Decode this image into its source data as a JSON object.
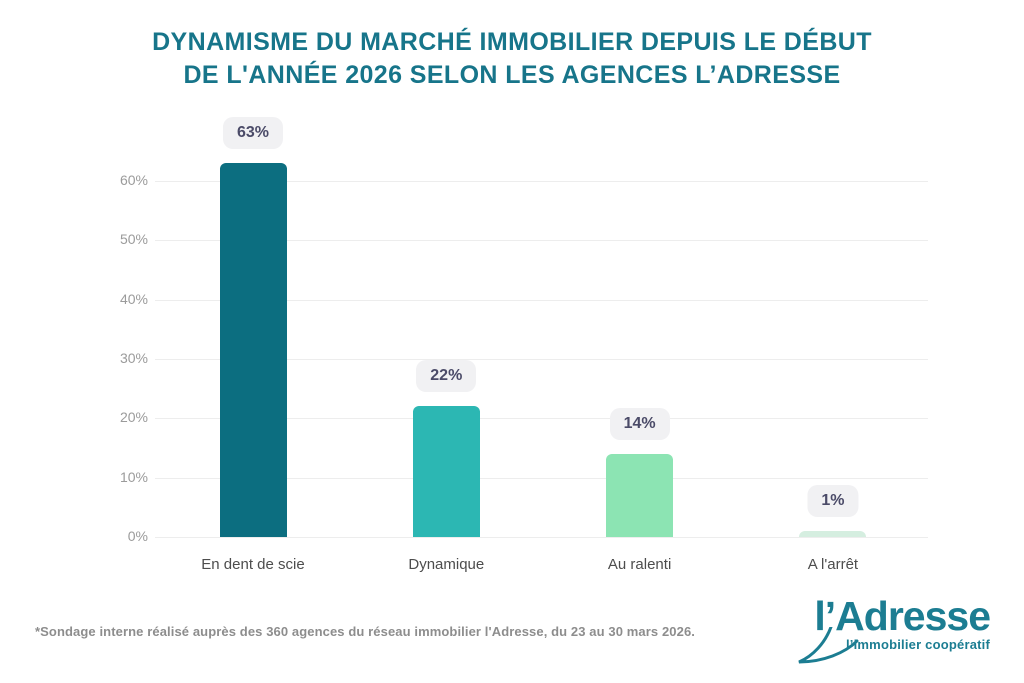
{
  "title": {
    "line1": "DYNAMISME DU MARCHÉ IMMOBILIER DEPUIS LE DÉBUT",
    "line2": "DE L'ANNÉE 2026 SELON LES AGENCES L’ADRESSE"
  },
  "chart_data": {
    "type": "bar",
    "title": "DYNAMISME DU MARCHÉ IMMOBILIER DEPUIS LE DÉBUT DE L'ANNÉE 2026 SELON LES AGENCES L’ADRESSE",
    "categories": [
      "En dent de scie",
      "Dynamique",
      "Au ralenti",
      "A l'arrêt"
    ],
    "values": [
      63,
      22,
      14,
      1
    ],
    "value_labels": [
      "63%",
      "22%",
      "14%",
      "1%"
    ],
    "bar_colors": [
      "#0c6e80",
      "#2cb7b3",
      "#8ce4b3",
      "#d5eee0"
    ],
    "y_ticks": [
      "0%",
      "10%",
      "20%",
      "30%",
      "40%",
      "50%",
      "60%"
    ],
    "ylim": [
      0,
      60
    ],
    "grid": true,
    "legend": "none",
    "xlabel": "",
    "ylabel": ""
  },
  "footnote": {
    "text": "*Sondage interne réalisé auprès des 360 agences du réseau immobilier l'Adresse, du 23 au 30 mars 2026."
  },
  "logo": {
    "name": "l’Adresse",
    "tagline": "l’immobilier coopératif"
  },
  "colors": {
    "title_teal": "#17758a",
    "logo_teal": "#1c7d92",
    "badge_bg": "#f1f1f3",
    "badge_text": "#4b4b68",
    "gridline": "#ededed",
    "y_tick_text": "#9b9b9b",
    "category_text": "#4d4d4d",
    "footnote_text": "#8d8d8d"
  }
}
